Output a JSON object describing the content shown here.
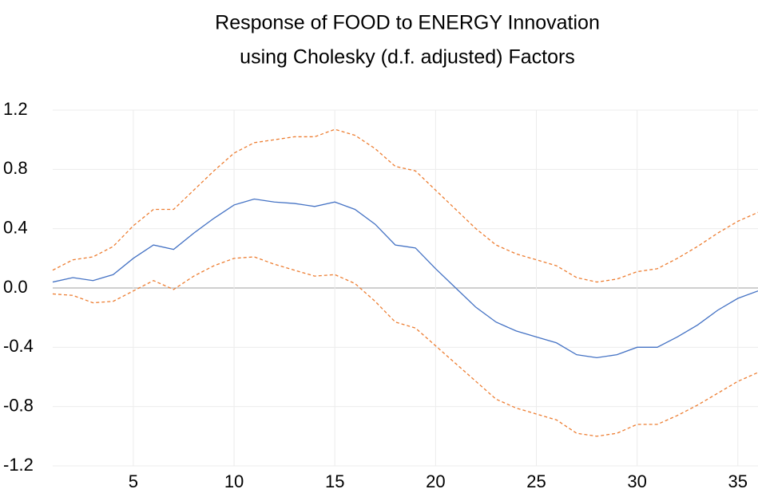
{
  "chart_data": {
    "type": "line",
    "title": "Response of FOOD to ENERGY Innovation",
    "subtitle": "using Cholesky (d.f. adjusted) Factors",
    "x": [
      1,
      2,
      3,
      4,
      5,
      6,
      7,
      8,
      9,
      10,
      11,
      12,
      13,
      14,
      15,
      16,
      17,
      18,
      19,
      20,
      21,
      22,
      23,
      24,
      25,
      26,
      27,
      28,
      29,
      30,
      31,
      32,
      33,
      34,
      35,
      36
    ],
    "series": [
      {
        "color": "#4472c4",
        "style": "solid",
        "values": [
          0.04,
          0.07,
          0.05,
          0.09,
          0.2,
          0.29,
          0.26,
          0.37,
          0.47,
          0.56,
          0.6,
          0.58,
          0.57,
          0.55,
          0.58,
          0.53,
          0.43,
          0.29,
          0.27,
          0.13,
          0.0,
          -0.13,
          -0.23,
          -0.29,
          -0.33,
          -0.37,
          -0.45,
          -0.47,
          -0.45,
          -0.4,
          -0.4,
          -0.33,
          -0.25,
          -0.15,
          -0.07,
          -0.02
        ]
      },
      {
        "color": "#ed7d31",
        "style": "dashed",
        "values": [
          0.12,
          0.19,
          0.21,
          0.28,
          0.42,
          0.53,
          0.53,
          0.66,
          0.79,
          0.91,
          0.98,
          1.0,
          1.02,
          1.02,
          1.07,
          1.03,
          0.94,
          0.82,
          0.79,
          0.66,
          0.53,
          0.4,
          0.29,
          0.23,
          0.19,
          0.15,
          0.07,
          0.04,
          0.06,
          0.11,
          0.13,
          0.2,
          0.28,
          0.37,
          0.45,
          0.51
        ]
      },
      {
        "color": "#ed7d31",
        "style": "dashed",
        "values": [
          -0.04,
          -0.05,
          -0.1,
          -0.09,
          -0.02,
          0.05,
          -0.01,
          0.08,
          0.15,
          0.2,
          0.21,
          0.16,
          0.12,
          0.08,
          0.09,
          0.03,
          -0.09,
          -0.23,
          -0.27,
          -0.39,
          -0.51,
          -0.63,
          -0.75,
          -0.81,
          -0.85,
          -0.89,
          -0.98,
          -1.0,
          -0.98,
          -0.92,
          -0.92,
          -0.86,
          -0.79,
          -0.71,
          -0.63,
          -0.57
        ]
      }
    ],
    "xlim": [
      1,
      36
    ],
    "xticks": [
      5,
      10,
      15,
      20,
      25,
      30,
      35
    ],
    "ylim": [
      -1.2,
      1.2
    ],
    "yticks": [
      1.2,
      0.8,
      0.4,
      {
        "value": 0,
        "label": "0.0"
      },
      -0.4,
      -0.8,
      -1.2
    ],
    "grid": true
  }
}
